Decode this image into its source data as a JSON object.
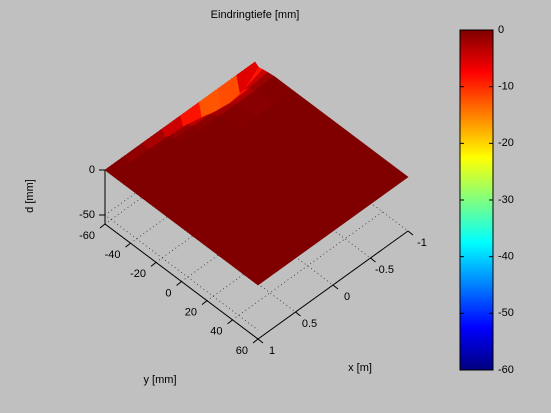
{
  "chart_data": {
    "type": "surface",
    "title": "Eindringtiefe [mm]",
    "xlabel": "x   [m]",
    "ylabel": "y   [mm]",
    "zlabel": "d   [mm]",
    "x": [
      -1,
      -0.75,
      -0.5,
      -0.25,
      0,
      0.25,
      0.5,
      0.75,
      1
    ],
    "y": [
      -60,
      -57,
      -54,
      -50,
      -45,
      -30,
      0,
      30,
      60
    ],
    "z": [
      [
        0,
        -3,
        -2,
        -1,
        0,
        0,
        0,
        0,
        0
      ],
      [
        0,
        -20,
        -10,
        -4,
        -1,
        0,
        0,
        0,
        0
      ],
      [
        0,
        -28,
        -14,
        -5,
        -1,
        0,
        0,
        0,
        0
      ],
      [
        0,
        -22,
        -8,
        -2,
        0,
        0,
        0,
        0,
        0
      ],
      [
        0,
        -12,
        -3,
        -1,
        0,
        0,
        0,
        0,
        0
      ],
      [
        0,
        -6,
        -1,
        0,
        0,
        0,
        0,
        0,
        0
      ],
      [
        0,
        -3,
        0,
        0,
        0,
        0,
        0,
        0,
        0
      ],
      [
        0,
        -1,
        0,
        0,
        0,
        0,
        0,
        0,
        0
      ],
      [
        0,
        0,
        0,
        0,
        0,
        0,
        0,
        0,
        0
      ]
    ],
    "xlim": [
      -1,
      1
    ],
    "ylim": [
      -60,
      60
    ],
    "zlim": [
      -60,
      0
    ],
    "xticks": [
      -1,
      -0.5,
      0,
      0.5,
      1
    ],
    "yticks": [
      -60,
      -40,
      -20,
      0,
      20,
      40,
      60
    ],
    "zticks": [
      -50,
      0
    ],
    "grid": true,
    "colormap": "jet",
    "colorbar": {
      "clim": [
        -60,
        0
      ],
      "ticks": [
        -60,
        -50,
        -40,
        -30,
        -20,
        -10,
        0
      ]
    }
  }
}
